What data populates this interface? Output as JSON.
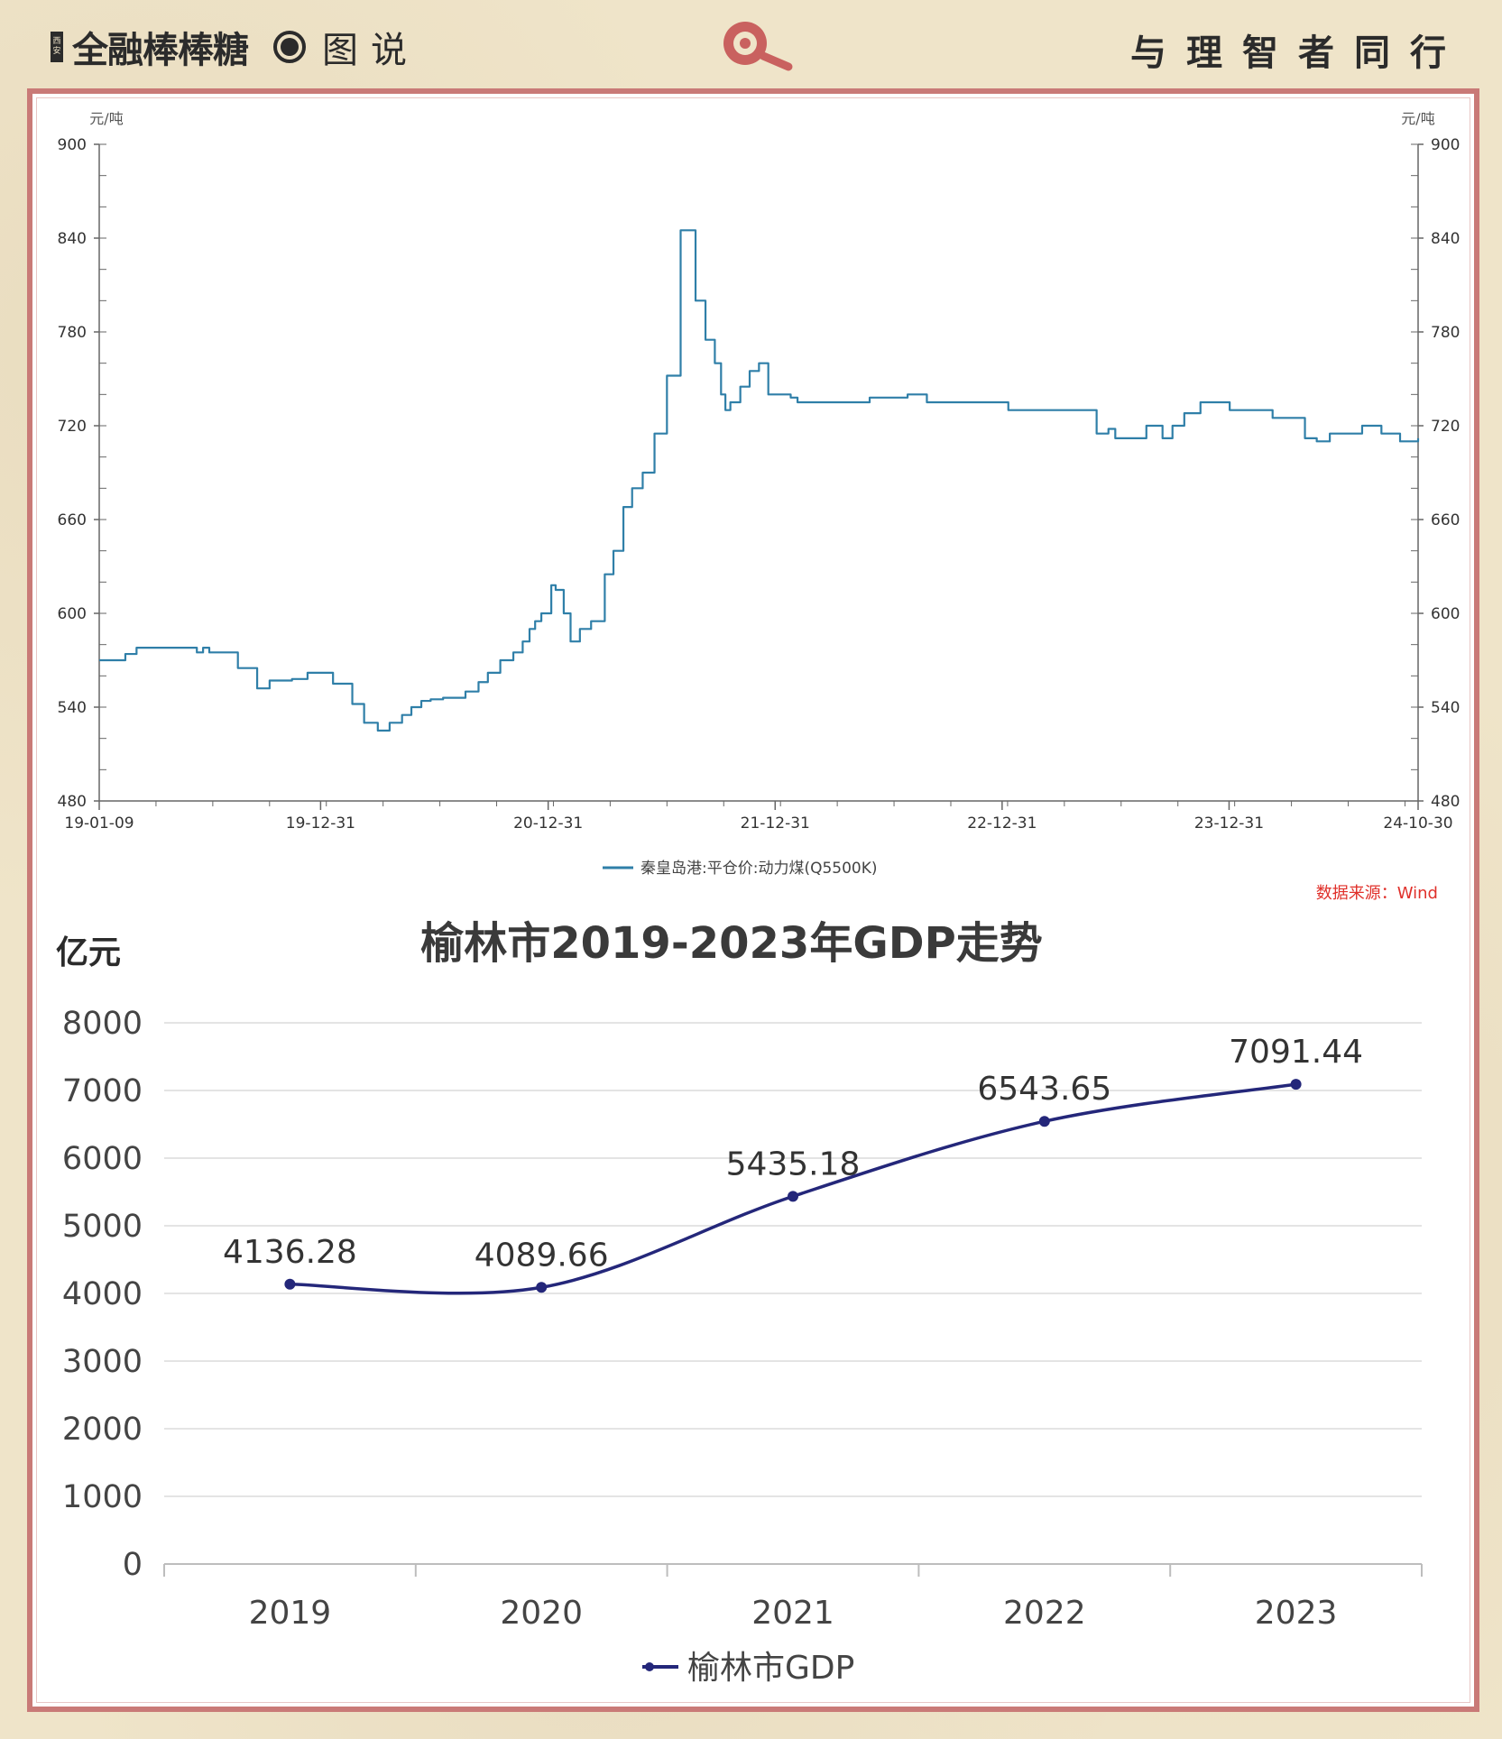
{
  "header": {
    "brand_badge": "西安",
    "brand_name": "全融棒棒糖",
    "section": "图说",
    "slogan": "与理智者同行"
  },
  "colors": {
    "background": "#efe4c9",
    "panel_border": "#c97a77",
    "coal_line": "#2f7fa8",
    "gdp_line": "#24277a",
    "source_text": "#e0302a",
    "magnifier": "#c9615f"
  },
  "chart_data": [
    {
      "type": "line",
      "title": "",
      "ylabel_left": "元/吨",
      "ylabel_right": "元/吨",
      "ylim": [
        480,
        900
      ],
      "y_ticks": [
        "480",
        "540",
        "600",
        "660",
        "720",
        "780",
        "840",
        "900"
      ],
      "x_ticks": [
        "19-01-09",
        "19-12-31",
        "20-12-31",
        "21-12-31",
        "22-12-31",
        "23-12-31",
        "24-10-30"
      ],
      "legend": "秦皇岛港:平仓价:动力煤(Q5500K)",
      "legend_position": "bottom",
      "source": "数据来源：Wind",
      "grid": false,
      "series": [
        {
          "name": "秦皇岛港:平仓价:动力煤(Q5500K)",
          "x": [
            "2019-01-09",
            "2019-02-01",
            "2019-02-20",
            "2019-03-10",
            "2019-06-01",
            "2019-06-15",
            "2019-06-25",
            "2019-07-05",
            "2019-08-10",
            "2019-08-20",
            "2019-09-20",
            "2019-10-10",
            "2019-11-15",
            "2019-12-10",
            "2020-01-20",
            "2020-02-20",
            "2020-03-10",
            "2020-04-01",
            "2020-04-20",
            "2020-05-10",
            "2020-05-25",
            "2020-06-10",
            "2020-06-25",
            "2020-07-15",
            "2020-08-20",
            "2020-09-10",
            "2020-09-25",
            "2020-10-15",
            "2020-11-05",
            "2020-11-20",
            "2020-12-01",
            "2020-12-10",
            "2020-12-20",
            "2021-01-05",
            "2021-01-12",
            "2021-01-25",
            "2021-02-05",
            "2021-02-20",
            "2021-03-10",
            "2021-04-01",
            "2021-04-15",
            "2021-05-01",
            "2021-05-15",
            "2021-06-01",
            "2021-06-20",
            "2021-07-10",
            "2021-08-01",
            "2021-08-25",
            "2021-09-10",
            "2021-09-25",
            "2021-10-05",
            "2021-10-12",
            "2021-10-20",
            "2021-11-05",
            "2021-11-20",
            "2021-12-05",
            "2021-12-20",
            "2022-01-10",
            "2022-01-25",
            "2022-02-05",
            "2022-03-01",
            "2022-06-01",
            "2022-07-01",
            "2022-08-01",
            "2022-09-01",
            "2022-10-01",
            "2022-11-01",
            "2023-01-10",
            "2023-02-01",
            "2023-04-01",
            "2023-05-01",
            "2023-05-15",
            "2023-06-01",
            "2023-06-20",
            "2023-07-01",
            "2023-08-01",
            "2023-08-20",
            "2023-09-15",
            "2023-10-01",
            "2023-10-20",
            "2023-11-15",
            "2024-01-01",
            "2024-03-10",
            "2024-04-01",
            "2024-05-01",
            "2024-05-20",
            "2024-06-10",
            "2024-07-01",
            "2024-08-01",
            "2024-09-01",
            "2024-09-15",
            "2024-10-01",
            "2024-10-30"
          ],
          "values": [
            570,
            570,
            574,
            578,
            578,
            575,
            578,
            575,
            575,
            565,
            552,
            557,
            558,
            562,
            555,
            542,
            530,
            525,
            530,
            535,
            540,
            544,
            545,
            546,
            550,
            556,
            562,
            570,
            575,
            582,
            590,
            595,
            600,
            618,
            615,
            600,
            582,
            590,
            595,
            625,
            640,
            668,
            680,
            690,
            715,
            752,
            845,
            800,
            775,
            760,
            740,
            730,
            735,
            745,
            755,
            760,
            740,
            740,
            738,
            735,
            735,
            738,
            738,
            740,
            735,
            735,
            735,
            730,
            730,
            730,
            730,
            730,
            715,
            718,
            712,
            712,
            720,
            712,
            720,
            728,
            735,
            730,
            725,
            725,
            712,
            710,
            715,
            715,
            720,
            715,
            715,
            710,
            712
          ]
        }
      ]
    },
    {
      "type": "line",
      "title": "榆林市2019-2023年GDP走势",
      "ylabel": "亿元",
      "ylim": [
        0,
        8000
      ],
      "y_ticks": [
        "0",
        "1000",
        "2000",
        "3000",
        "4000",
        "5000",
        "6000",
        "7000",
        "8000"
      ],
      "categories": [
        "2019",
        "2020",
        "2021",
        "2022",
        "2023"
      ],
      "legend_position": "bottom",
      "grid": true,
      "series": [
        {
          "name": "榆林市GDP",
          "values": [
            4136.28,
            4089.66,
            5435.18,
            6543.65,
            7091.44
          ],
          "labels": [
            "4136.28",
            "4089.66",
            "5435.18",
            "6543.65",
            "7091.44"
          ]
        }
      ]
    }
  ]
}
